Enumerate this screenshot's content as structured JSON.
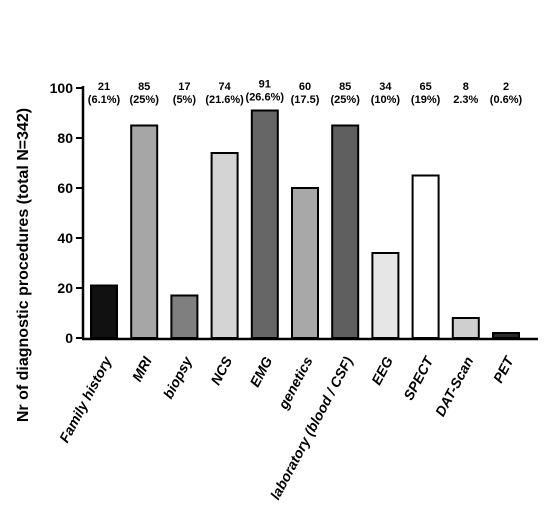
{
  "chart_data": {
    "type": "bar",
    "title": "",
    "xlabel": "",
    "ylabel": "Nr of diagnostic procedures (total N=342)",
    "ylim": [
      0,
      100
    ],
    "yticks": [
      0,
      20,
      40,
      60,
      80,
      100
    ],
    "grid": false,
    "legend": "none",
    "categories": [
      "Family history",
      "MRI",
      "biopsy",
      "NCS",
      "EMG",
      "genetics",
      "laboratory (blood / CSF)",
      "EEG",
      "SPECT",
      "DAT-Scan",
      "PET"
    ],
    "values": [
      21,
      85,
      17,
      74,
      91,
      60,
      85,
      34,
      65,
      8,
      2
    ],
    "data_labels": [
      [
        "21",
        "(6.1%)"
      ],
      [
        "85",
        "(25%)"
      ],
      [
        "17",
        "(5%)"
      ],
      [
        "74",
        "(21.6%)"
      ],
      [
        "91",
        "(26.6%)"
      ],
      [
        "60",
        "(17.5)"
      ],
      [
        "85",
        "(25%)"
      ],
      [
        "34",
        "(10%)"
      ],
      [
        "65",
        "(19%)"
      ],
      [
        "8",
        "2.3%"
      ],
      [
        "2",
        "(0.6%)"
      ]
    ],
    "bar_colors": [
      "#111111",
      "#a6a6a6",
      "#7f7f7f",
      "#d4d4d4",
      "#666666",
      "#a8a8a8",
      "#5f5f5f",
      "#e6e6e6",
      "#ffffff",
      "#cfcfcf",
      "#2a2a2a"
    ]
  }
}
